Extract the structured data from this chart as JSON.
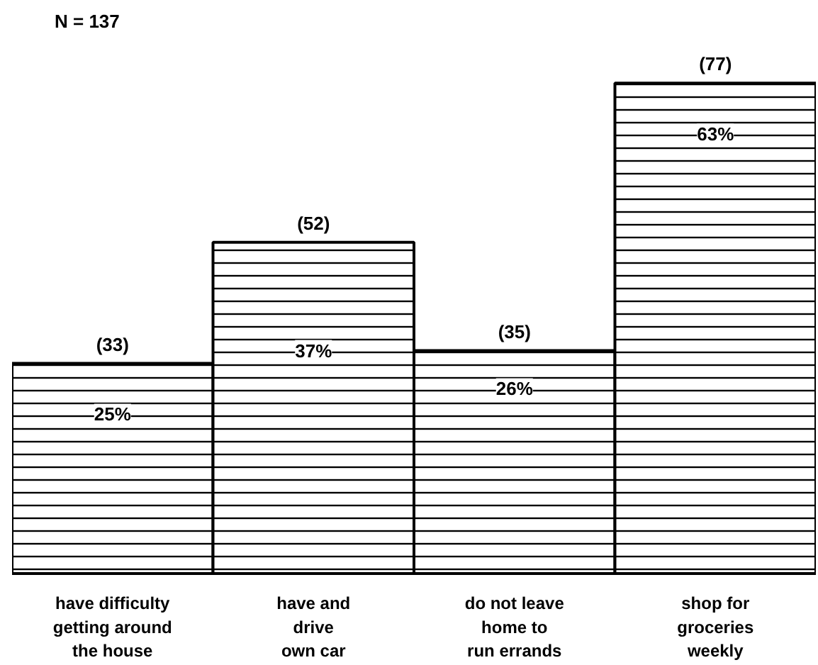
{
  "chart_data": {
    "type": "bar",
    "title": "N = 137",
    "categories": [
      "have difficulty\ngetting around\nthe house",
      "have and\ndrive\nown car",
      "do not leave\nhome to\nrun errands",
      "shop for\ngroceries\nweekly"
    ],
    "values": [
      33,
      52,
      35,
      77
    ],
    "value_labels": [
      "(33)",
      "(52)",
      "(35)",
      "(77)"
    ],
    "color": "#000000",
    "annotations": [
      {
        "text": "25%",
        "x": "have difficulty\ngetting around\nthe house",
        "y": 25
      },
      {
        "text": "37%",
        "x": "have and\ndrive\nown car",
        "y": 35
      },
      {
        "text": "26%",
        "x": "do not leave\nhome to\nrun errands",
        "y": 29
      },
      {
        "text": "63%",
        "x": "shop for\ngroceries\nweekly",
        "y": 69
      }
    ],
    "grid": false
  }
}
